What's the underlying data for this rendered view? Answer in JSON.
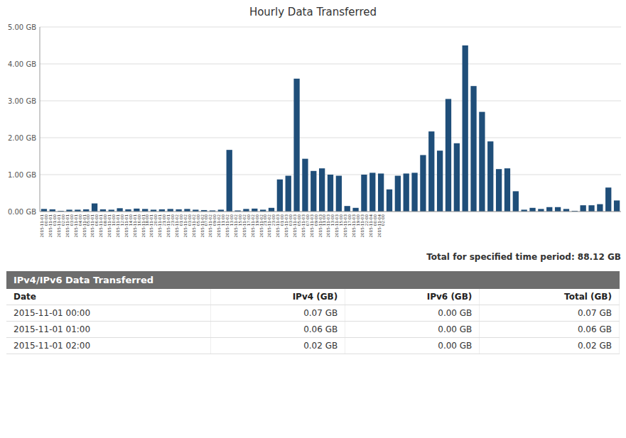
{
  "chart_data": {
    "type": "bar",
    "title": "Hourly Data Transferred",
    "categories": [
      "2015-11-01\n00:00",
      "2015-11-01\n01:00",
      "2015-11-01\n02:00",
      "2015-11-01\n03:00",
      "2015-11-01\n04:00",
      "2015-11-01\n05:00",
      "2015-11-01\n06:00",
      "2015-11-01\n08:00",
      "2015-11-01\n10:00",
      "2015-11-01\n12:00",
      "2015-11-01\n14:00",
      "2015-11-01\n16:00",
      "2015-11-01\n18:00",
      "2015-11-01\n20:00",
      "2015-11-01\n21:00",
      "2015-11-01\n23:00",
      "2015-11-02\n01:00",
      "2015-11-02\n03:00",
      "2015-11-02\n05:00",
      "2015-11-02\n07:00",
      "2015-11-02\n09:00",
      "2015-11-02\n11:00",
      "2015-11-02\n13:00",
      "2015-11-02\n15:00",
      "2015-11-02\n17:00",
      "2015-11-02\n19:00",
      "2015-11-02\n21:00",
      "2015-11-02\n23:00",
      "2015-11-03\n01:00",
      "2015-11-03\n03:00",
      "2015-11-03\n05:00",
      "2015-11-03\n07:00",
      "2015-11-03\n09:00",
      "2015-11-03\n11:00",
      "2015-11-03\n13:00",
      "2015-11-03\n15:00",
      "2015-11-03\n17:00",
      "2015-11-03\n19:00",
      "2015-11-03\n22:00",
      "2015-11-04\n00:00",
      "2015-11-04\n02:00",
      null,
      null,
      null,
      null,
      null,
      null,
      null,
      null,
      null,
      null,
      null,
      null,
      null,
      null,
      null,
      null,
      null,
      null,
      null,
      null,
      null,
      null,
      null,
      null,
      null,
      null,
      null,
      null
    ],
    "values": [
      0.07,
      0.06,
      0.02,
      0.05,
      0.05,
      0.06,
      0.22,
      0.06,
      0.05,
      0.09,
      0.06,
      0.08,
      0.07,
      0.05,
      0.06,
      0.07,
      0.06,
      0.07,
      0.05,
      0.04,
      0.03,
      0.05,
      1.67,
      0.03,
      0.07,
      0.08,
      0.05,
      0.1,
      0.87,
      0.97,
      3.6,
      1.43,
      1.1,
      1.17,
      1.0,
      0.97,
      0.15,
      0.1,
      1.0,
      1.05,
      1.03,
      0.6,
      0.97,
      1.03,
      1.05,
      1.53,
      2.17,
      1.65,
      3.05,
      1.85,
      4.5,
      3.4,
      2.7,
      1.9,
      1.15,
      1.17,
      0.55,
      0.05,
      0.1,
      0.07,
      0.12,
      0.12,
      0.07,
      0.02,
      0.17,
      0.17,
      0.2,
      0.65,
      0.3
    ],
    "color": "#1F4E79",
    "ylim": [
      0,
      5.0
    ],
    "yticks": [
      {
        "value": 0.0,
        "label": "0.00 GB"
      },
      {
        "value": 1.0,
        "label": "1.00 GB"
      },
      {
        "value": 2.0,
        "label": "2.00 GB"
      },
      {
        "value": 3.0,
        "label": "3.00 GB"
      },
      {
        "value": 4.0,
        "label": "4.00 GB"
      },
      {
        "value": 5.0,
        "label": "5.00 GB"
      }
    ],
    "grid": true,
    "annotations": [
      "Total for specified time period: 88.12 GB"
    ]
  },
  "table": {
    "title": "IPv4/IPv6 Data Transferred",
    "columns": [
      "Date",
      "IPv4 (GB)",
      "IPv6 (GB)",
      "Total (GB)"
    ],
    "rows": [
      [
        "2015-11-01 00:00",
        "0.07 GB",
        "0.00 GB",
        "0.07 GB"
      ],
      [
        "2015-11-01 01:00",
        "0.06 GB",
        "0.00 GB",
        "0.06 GB"
      ],
      [
        "2015-11-01 02:00",
        "0.02 GB",
        "0.00 GB",
        "0.02 GB"
      ]
    ]
  }
}
